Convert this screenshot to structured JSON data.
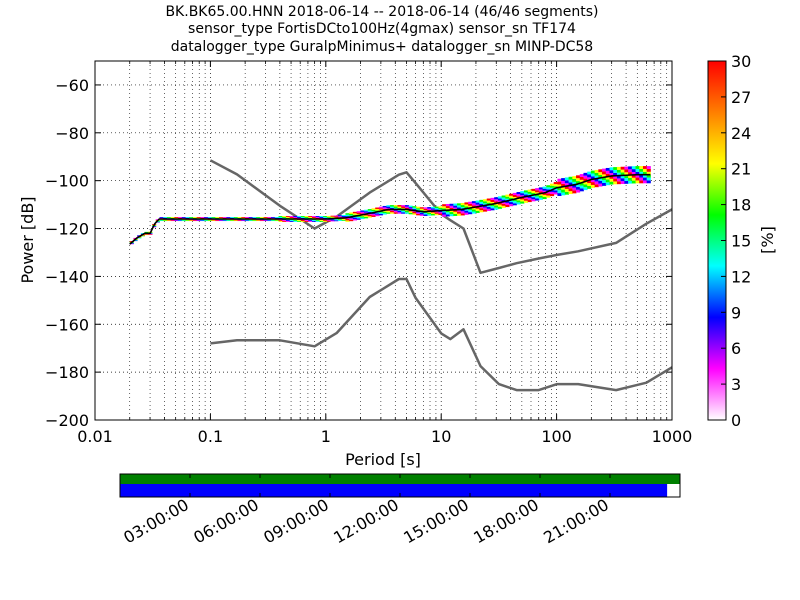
{
  "chart_data": [
    {
      "type": "line",
      "title_lines": [
        "BK.BK65.00.HNN   2018-06-14 -- 2018-06-14  (46/46 segments)",
        "sensor_type FortisDCto100Hz(4gmax) sensor_sn TF174",
        "datalogger_type GuralpMinimus+ datalogger_sn MINP-DC58"
      ],
      "xlabel": "Period [s]",
      "ylabel": "Power [dB]",
      "xscale": "log",
      "xlim": [
        0.01,
        1000
      ],
      "ylim": [
        -200,
        -50
      ],
      "xtick_values": [
        0.01,
        0.1,
        1,
        10,
        100,
        1000
      ],
      "xtick_labels": [
        "0.01",
        "0.1",
        "1",
        "10",
        "100",
        "1000"
      ],
      "ytick_values": [
        -200,
        -180,
        -160,
        -140,
        -120,
        -100,
        -80,
        -60
      ],
      "ytick_labels": [
        "−200",
        "−180",
        "−160",
        "−140",
        "−120",
        "−100",
        "−80",
        "−60"
      ],
      "grid": "dotted, x and y",
      "series": [
        {
          "role": "upper noise model",
          "color": "#666666",
          "points": [
            [
              0.1,
              -91.5
            ],
            [
              0.17,
              -97.4
            ],
            [
              0.4,
              -110.5
            ],
            [
              0.8,
              -120
            ],
            [
              1.24,
              -115
            ],
            [
              2.4,
              -105
            ],
            [
              4.3,
              -97.5
            ],
            [
              5.0,
              -96.5
            ],
            [
              6.0,
              -101
            ],
            [
              10,
              -114
            ],
            [
              12,
              -116.5
            ],
            [
              15.6,
              -120
            ],
            [
              21.9,
              -138.5
            ],
            [
              31.6,
              -136.5
            ],
            [
              45,
              -134.5
            ],
            [
              70,
              -132.5
            ],
            [
              101,
              -131
            ],
            [
              154,
              -129.5
            ],
            [
              328,
              -126
            ],
            [
              600,
              -118
            ],
            [
              1000,
              -112
            ]
          ]
        },
        {
          "role": "lower noise model",
          "color": "#666666",
          "points": [
            [
              0.1,
              -168
            ],
            [
              0.17,
              -166.7
            ],
            [
              0.4,
              -166.7
            ],
            [
              0.8,
              -169.2
            ],
            [
              1.24,
              -163.7
            ],
            [
              2.4,
              -148.6
            ],
            [
              4.3,
              -141.1
            ],
            [
              5.0,
              -141.1
            ],
            [
              6.0,
              -149
            ],
            [
              10,
              -163.8
            ],
            [
              12,
              -166.2
            ],
            [
              15.6,
              -162.1
            ],
            [
              21.9,
              -177.5
            ],
            [
              31.6,
              -185
            ],
            [
              45,
              -187.5
            ],
            [
              70,
              -187.5
            ],
            [
              101,
              -185
            ],
            [
              154,
              -185
            ],
            [
              328,
              -187.5
            ],
            [
              600,
              -184.4
            ],
            [
              1000,
              -178
            ]
          ]
        },
        {
          "role": "PPSD mode",
          "color": "#000000",
          "points": [
            [
              0.02,
              -126.5
            ],
            [
              0.023,
              -124
            ],
            [
              0.027,
              -122
            ],
            [
              0.03,
              -122
            ],
            [
              0.033,
              -118
            ],
            [
              0.036,
              -116
            ],
            [
              0.1,
              -116
            ],
            [
              1,
              -116
            ],
            [
              1.5,
              -115.5
            ],
            [
              2.5,
              -113.5
            ],
            [
              3.5,
              -112
            ],
            [
              5,
              -112
            ],
            [
              7,
              -113
            ],
            [
              10,
              -112.5
            ],
            [
              15,
              -112
            ],
            [
              20,
              -111
            ],
            [
              30,
              -109.5
            ],
            [
              50,
              -107
            ],
            [
              80,
              -105
            ],
            [
              100,
              -103
            ],
            [
              150,
              -101.5
            ],
            [
              200,
              -99.5
            ],
            [
              300,
              -98
            ],
            [
              500,
              -97.5
            ],
            [
              650,
              -97.5
            ]
          ]
        }
      ],
      "ppsd_band": {
        "colors": [
          "#ff00ff",
          "#0000ff",
          "#00ffff",
          "#00ff00",
          "#ffff00",
          "#ff0000"
        ],
        "segments": [
          {
            "x0": 0.02,
            "x1": 0.036,
            "half_width_db": 0.6
          },
          {
            "x0": 0.036,
            "x1": 0.4,
            "half_width_db": 0.8
          },
          {
            "x0": 0.4,
            "x1": 1.5,
            "half_width_db": 1.2
          },
          {
            "x0": 1.5,
            "x1": 10,
            "half_width_db": 1.8
          },
          {
            "x0": 10,
            "x1": 100,
            "half_width_db": 2.6
          },
          {
            "x0": 100,
            "x1": 650,
            "half_width_db": 3.6
          }
        ]
      },
      "colorbar": {
        "label": "[%]",
        "min": 0,
        "max": 30,
        "tick_values": [
          0,
          3,
          6,
          9,
          12,
          15,
          18,
          21,
          24,
          27,
          30
        ],
        "tick_labels": [
          "0",
          "3",
          "6",
          "9",
          "12",
          "15",
          "18",
          "21",
          "24",
          "27",
          "30"
        ],
        "colormap": [
          "#ffffff",
          "#ff00ff",
          "#0000ff",
          "#00ffff",
          "#00ff00",
          "#ffff00",
          "#ff7f00",
          "#ff0000"
        ]
      }
    },
    {
      "type": "timeline",
      "tick_labels": [
        "03:00:00",
        "06:00:00",
        "09:00:00",
        "12:00:00",
        "15:00:00",
        "18:00:00",
        "21:00:00"
      ],
      "top_bar": {
        "color": "#008000",
        "fraction": 1.0
      },
      "bottom_bar": {
        "color": "#0000ff",
        "fraction": 0.977
      }
    }
  ]
}
